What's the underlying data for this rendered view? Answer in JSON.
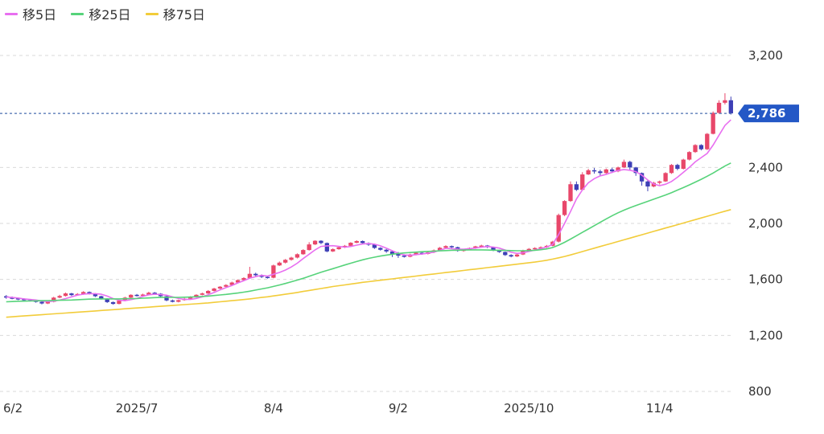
{
  "legend": [
    {
      "label": "移5日",
      "color": "#e86ff0"
    },
    {
      "label": "移25日",
      "color": "#56d37a"
    },
    {
      "label": "移75日",
      "color": "#f2cc3a"
    }
  ],
  "current_price": {
    "label": "2,786",
    "value": 2786,
    "color": "#2458c6"
  },
  "colors": {
    "up": "#e8476a",
    "down": "#3d3fb6",
    "grid": "#d9d9d9",
    "current_line": "#4a6fb0"
  },
  "chart_data": {
    "type": "candlestick",
    "y_axis": {
      "ylim": [
        800,
        3350
      ],
      "ticks": [
        3200,
        2400,
        2000,
        1600,
        1200,
        800
      ],
      "tick_labels": [
        "3,200",
        "2,400",
        "2,000",
        "1,600",
        "1,200",
        "800"
      ]
    },
    "x_axis": {
      "labels": [
        {
          "label": "6/2",
          "index": 0
        },
        {
          "label": "2025/7",
          "index": 22
        },
        {
          "label": "8/4",
          "index": 45
        },
        {
          "label": "9/2",
          "index": 66
        },
        {
          "label": "2025/10",
          "index": 88
        },
        {
          "label": "11/4",
          "index": 110
        }
      ],
      "total_days": 123
    },
    "candles": [
      [
        1480,
        1470,
        1488,
        1462
      ],
      [
        1470,
        1465,
        1478,
        1458
      ],
      [
        1465,
        1460,
        1470,
        1452
      ],
      [
        1460,
        1452,
        1466,
        1446
      ],
      [
        1452,
        1448,
        1458,
        1442
      ],
      [
        1448,
        1440,
        1452,
        1434
      ],
      [
        1440,
        1428,
        1444,
        1422
      ],
      [
        1428,
        1440,
        1446,
        1424
      ],
      [
        1440,
        1470,
        1476,
        1436
      ],
      [
        1470,
        1482,
        1490,
        1466
      ],
      [
        1482,
        1500,
        1506,
        1478
      ],
      [
        1500,
        1488,
        1504,
        1482
      ],
      [
        1488,
        1496,
        1502,
        1484
      ],
      [
        1496,
        1510,
        1516,
        1490
      ],
      [
        1510,
        1498,
        1514,
        1492
      ],
      [
        1498,
        1480,
        1502,
        1474
      ],
      [
        1480,
        1462,
        1484,
        1456
      ],
      [
        1462,
        1438,
        1466,
        1432
      ],
      [
        1438,
        1425,
        1442,
        1420
      ],
      [
        1425,
        1448,
        1452,
        1422
      ],
      [
        1448,
        1470,
        1476,
        1444
      ],
      [
        1470,
        1490,
        1494,
        1466
      ],
      [
        1490,
        1484,
        1496,
        1478
      ],
      [
        1484,
        1492,
        1498,
        1480
      ],
      [
        1492,
        1505,
        1512,
        1488
      ],
      [
        1505,
        1498,
        1510,
        1492
      ],
      [
        1498,
        1480,
        1502,
        1474
      ],
      [
        1480,
        1450,
        1484,
        1444
      ],
      [
        1450,
        1440,
        1456,
        1436
      ],
      [
        1440,
        1452,
        1456,
        1436
      ],
      [
        1452,
        1462,
        1468,
        1448
      ],
      [
        1462,
        1475,
        1480,
        1458
      ],
      [
        1475,
        1490,
        1494,
        1470
      ],
      [
        1490,
        1500,
        1506,
        1486
      ],
      [
        1500,
        1518,
        1524,
        1496
      ],
      [
        1518,
        1535,
        1540,
        1514
      ],
      [
        1535,
        1548,
        1552,
        1530
      ],
      [
        1548,
        1560,
        1566,
        1544
      ],
      [
        1560,
        1578,
        1584,
        1556
      ],
      [
        1578,
        1595,
        1600,
        1572
      ],
      [
        1595,
        1610,
        1616,
        1590
      ],
      [
        1610,
        1640,
        1690,
        1604
      ],
      [
        1640,
        1630,
        1648,
        1622
      ],
      [
        1630,
        1618,
        1636,
        1610
      ],
      [
        1618,
        1612,
        1624,
        1606
      ],
      [
        1612,
        1700,
        1706,
        1608
      ],
      [
        1700,
        1720,
        1728,
        1696
      ],
      [
        1720,
        1740,
        1746,
        1714
      ],
      [
        1740,
        1756,
        1762,
        1734
      ],
      [
        1756,
        1780,
        1786,
        1750
      ],
      [
        1780,
        1810,
        1816,
        1776
      ],
      [
        1810,
        1850,
        1866,
        1806
      ],
      [
        1850,
        1876,
        1880,
        1846
      ],
      [
        1876,
        1860,
        1880,
        1852
      ],
      [
        1860,
        1800,
        1864,
        1794
      ],
      [
        1800,
        1816,
        1822,
        1796
      ],
      [
        1816,
        1830,
        1836,
        1812
      ],
      [
        1830,
        1840,
        1846,
        1824
      ],
      [
        1840,
        1862,
        1866,
        1836
      ],
      [
        1862,
        1874,
        1880,
        1858
      ],
      [
        1874,
        1860,
        1878,
        1852
      ],
      [
        1860,
        1848,
        1864,
        1840
      ],
      [
        1848,
        1825,
        1852,
        1818
      ],
      [
        1825,
        1812,
        1830,
        1806
      ],
      [
        1812,
        1800,
        1818,
        1790
      ],
      [
        1800,
        1782,
        1806,
        1760
      ],
      [
        1782,
        1770,
        1796,
        1754
      ],
      [
        1770,
        1762,
        1780,
        1756
      ],
      [
        1762,
        1778,
        1784,
        1758
      ],
      [
        1778,
        1790,
        1796,
        1772
      ],
      [
        1790,
        1782,
        1798,
        1776
      ],
      [
        1782,
        1794,
        1800,
        1778
      ],
      [
        1794,
        1808,
        1814,
        1788
      ],
      [
        1808,
        1826,
        1832,
        1804
      ],
      [
        1826,
        1838,
        1844,
        1820
      ],
      [
        1838,
        1830,
        1842,
        1824
      ],
      [
        1830,
        1804,
        1834,
        1798
      ],
      [
        1804,
        1812,
        1818,
        1798
      ],
      [
        1812,
        1824,
        1828,
        1808
      ],
      [
        1824,
        1836,
        1840,
        1818
      ],
      [
        1836,
        1842,
        1848,
        1830
      ],
      [
        1842,
        1830,
        1846,
        1824
      ],
      [
        1830,
        1808,
        1834,
        1802
      ],
      [
        1808,
        1796,
        1812,
        1790
      ],
      [
        1796,
        1774,
        1800,
        1768
      ],
      [
        1774,
        1764,
        1780,
        1758
      ],
      [
        1764,
        1778,
        1784,
        1760
      ],
      [
        1778,
        1806,
        1812,
        1774
      ],
      [
        1806,
        1818,
        1824,
        1800
      ],
      [
        1818,
        1824,
        1830,
        1812
      ],
      [
        1824,
        1830,
        1836,
        1818
      ],
      [
        1830,
        1840,
        1846,
        1824
      ],
      [
        1840,
        1870,
        1876,
        1836
      ],
      [
        1870,
        2060,
        2070,
        1864
      ],
      [
        2060,
        2160,
        2166,
        2052
      ],
      [
        2160,
        2280,
        2300,
        2154
      ],
      [
        2280,
        2240,
        2300,
        2232
      ],
      [
        2240,
        2350,
        2366,
        2236
      ],
      [
        2350,
        2380,
        2390,
        2346
      ],
      [
        2380,
        2372,
        2396,
        2356
      ],
      [
        2372,
        2360,
        2384,
        2340
      ],
      [
        2360,
        2386,
        2392,
        2352
      ],
      [
        2386,
        2372,
        2398,
        2360
      ],
      [
        2372,
        2400,
        2406,
        2366
      ],
      [
        2400,
        2440,
        2456,
        2396
      ],
      [
        2440,
        2400,
        2448,
        2380
      ],
      [
        2400,
        2360,
        2404,
        2340
      ],
      [
        2360,
        2300,
        2364,
        2270
      ],
      [
        2300,
        2264,
        2308,
        2230
      ],
      [
        2264,
        2290,
        2298,
        2258
      ],
      [
        2290,
        2300,
        2306,
        2278
      ],
      [
        2300,
        2360,
        2366,
        2296
      ],
      [
        2360,
        2418,
        2424,
        2354
      ],
      [
        2418,
        2390,
        2426,
        2380
      ],
      [
        2390,
        2456,
        2462,
        2386
      ],
      [
        2456,
        2510,
        2516,
        2450
      ],
      [
        2510,
        2560,
        2566,
        2504
      ],
      [
        2560,
        2530,
        2566,
        2522
      ],
      [
        2530,
        2640,
        2646,
        2524
      ],
      [
        2640,
        2790,
        2800,
        2636
      ],
      [
        2790,
        2862,
        2880,
        2784
      ],
      [
        2862,
        2880,
        2930,
        2850
      ],
      [
        2880,
        2786,
        2906,
        2778
      ]
    ],
    "series": [
      {
        "name": "移5日",
        "color": "#e86ff0",
        "values": [
          1474,
          1471,
          1467,
          1461,
          1457,
          1453,
          1446,
          1442,
          1445,
          1452,
          1463,
          1475,
          1488,
          1495,
          1498,
          1498,
          1494,
          1481,
          1463,
          1451,
          1448,
          1455,
          1465,
          1479,
          1490,
          1494,
          1492,
          1487,
          1475,
          1464,
          1458,
          1457,
          1464,
          1476,
          1491,
          1507,
          1525,
          1541,
          1557,
          1575,
          1591,
          1609,
          1620,
          1629,
          1624,
          1637,
          1650,
          1667,
          1689,
          1716,
          1749,
          1780,
          1811,
          1836,
          1840,
          1841,
          1836,
          1830,
          1835,
          1845,
          1853,
          1856,
          1852,
          1840,
          1824,
          1805,
          1787,
          1775,
          1772,
          1777,
          1781,
          1787,
          1795,
          1808,
          1822,
          1820,
          1817,
          1816,
          1820,
          1824,
          1830,
          1835,
          1831,
          1824,
          1810,
          1794,
          1786,
          1790,
          1800,
          1810,
          1820,
          1832,
          1850,
          1920,
          2000,
          2085,
          2175,
          2240,
          2290,
          2320,
          2340,
          2350,
          2365,
          2378,
          2385,
          2380,
          2370,
          2345,
          2310,
          2282,
          2270,
          2280,
          2300,
          2330,
          2365,
          2400,
          2440,
          2470,
          2500,
          2560,
          2630,
          2700,
          2740
        ]
      },
      {
        "name": "移25日",
        "color": "#56d37a",
        "values": [
          1440,
          1442,
          1444,
          1445,
          1446,
          1447,
          1448,
          1449,
          1450,
          1451,
          1452,
          1453,
          1455,
          1457,
          1459,
          1460,
          1461,
          1461,
          1461,
          1461,
          1462,
          1463,
          1464,
          1466,
          1468,
          1470,
          1471,
          1472,
          1472,
          1472,
          1473,
          1474,
          1476,
          1478,
          1481,
          1485,
          1489,
          1493,
          1498,
          1503,
          1509,
          1516,
          1524,
          1532,
          1540,
          1550,
          1560,
          1571,
          1583,
          1595,
          1608,
          1622,
          1637,
          1651,
          1664,
          1677,
          1690,
          1703,
          1716,
          1728,
          1740,
          1750,
          1759,
          1767,
          1774,
          1780,
          1785,
          1789,
          1792,
          1795,
          1798,
          1800,
          1802,
          1804,
          1806,
          1808,
          1809,
          1810,
          1811,
          1811,
          1811,
          1810,
          1809,
          1808,
          1807,
          1806,
          1805,
          1805,
          1806,
          1808,
          1812,
          1818,
          1828,
          1845,
          1865,
          1888,
          1912,
          1936,
          1960,
          1984,
          2008,
          2032,
          2055,
          2076,
          2095,
          2112,
          2128,
          2143,
          2158,
          2173,
          2188,
          2203,
          2220,
          2238,
          2256,
          2275,
          2295,
          2315,
          2337,
          2360,
          2385,
          2410,
          2432
        ]
      },
      {
        "name": "移75日",
        "color": "#f2cc3a",
        "values": [
          1330,
          1333,
          1336,
          1339,
          1342,
          1345,
          1348,
          1351,
          1354,
          1357,
          1360,
          1363,
          1366,
          1369,
          1372,
          1375,
          1378,
          1381,
          1384,
          1387,
          1390,
          1393,
          1396,
          1399,
          1402,
          1405,
          1408,
          1411,
          1414,
          1417,
          1420,
          1423,
          1426,
          1429,
          1432,
          1436,
          1440,
          1444,
          1448,
          1452,
          1456,
          1461,
          1466,
          1471,
          1476,
          1482,
          1488,
          1494,
          1500,
          1507,
          1514,
          1521,
          1528,
          1535,
          1542,
          1549,
          1555,
          1561,
          1567,
          1573,
          1579,
          1584,
          1589,
          1594,
          1599,
          1604,
          1609,
          1614,
          1619,
          1624,
          1629,
          1634,
          1639,
          1644,
          1649,
          1654,
          1659,
          1664,
          1669,
          1674,
          1679,
          1684,
          1689,
          1694,
          1699,
          1704,
          1709,
          1714,
          1719,
          1724,
          1730,
          1737,
          1745,
          1754,
          1764,
          1775,
          1787,
          1799,
          1811,
          1823,
          1835,
          1847,
          1859,
          1871,
          1883,
          1895,
          1907,
          1919,
          1931,
          1943,
          1955,
          1967,
          1979,
          1991,
          2003,
          2015,
          2027,
          2039,
          2051,
          2063,
          2075,
          2087,
          2099
        ]
      }
    ]
  }
}
